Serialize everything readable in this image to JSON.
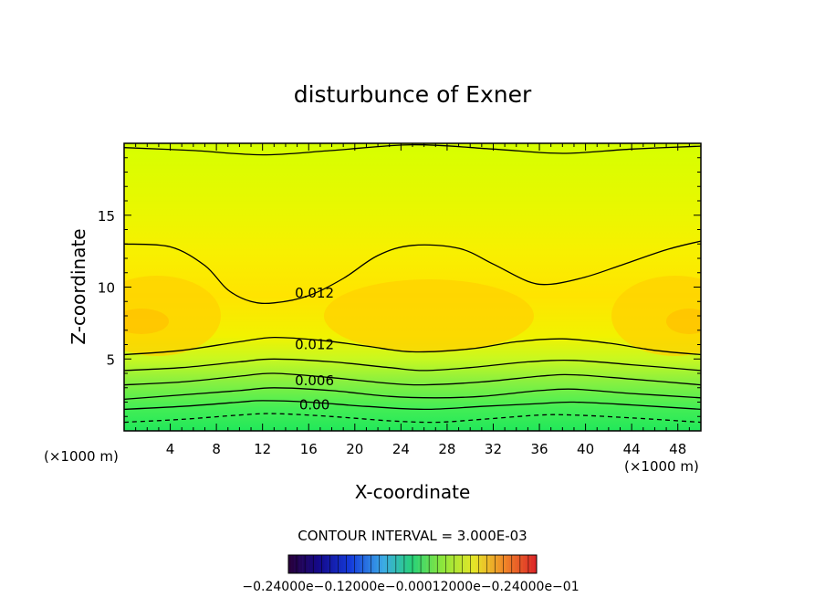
{
  "chart_data": {
    "type": "contour",
    "title": "disturbunce of Exner",
    "xlabel": "X-coordinate",
    "ylabel": "Z-coordinate",
    "x_unit_left": "(×1000 m)",
    "x_unit_right": "(×1000 m)",
    "xlim": [
      0,
      50
    ],
    "ylim": [
      0,
      20
    ],
    "x_ticks": [
      4,
      8,
      12,
      16,
      20,
      24,
      28,
      32,
      36,
      40,
      44,
      48
    ],
    "y_ticks": [
      5,
      10,
      15
    ],
    "contour_labels": [
      {
        "text": "0.012",
        "x": 16.5,
        "z": 9.6
      },
      {
        "text": "0.012",
        "x": 16.5,
        "z": 6.0
      },
      {
        "text": "0.006",
        "x": 16.5,
        "z": 3.5
      },
      {
        "text": "0.00",
        "x": 16.5,
        "z": 1.8
      }
    ],
    "contour_lines": [
      {
        "level": 0.015,
        "dashed": false,
        "points": [
          [
            0,
            19.7
          ],
          [
            6,
            19.5
          ],
          [
            12,
            19.2
          ],
          [
            18,
            19.5
          ],
          [
            25,
            19.9
          ],
          [
            32,
            19.6
          ],
          [
            38,
            19.3
          ],
          [
            44,
            19.6
          ],
          [
            50,
            19.8
          ]
        ]
      },
      {
        "level": 0.012,
        "dashed": false,
        "points": [
          [
            0,
            13.0
          ],
          [
            4,
            12.8
          ],
          [
            7,
            11.5
          ],
          [
            9,
            9.8
          ],
          [
            11,
            9.0
          ],
          [
            13,
            8.9
          ],
          [
            16,
            9.4
          ],
          [
            19,
            10.6
          ],
          [
            22,
            12.2
          ],
          [
            25,
            12.9
          ],
          [
            29,
            12.7
          ],
          [
            32,
            11.6
          ],
          [
            35,
            10.4
          ],
          [
            37,
            10.2
          ],
          [
            40,
            10.7
          ],
          [
            43,
            11.5
          ],
          [
            47,
            12.6
          ],
          [
            50,
            13.2
          ]
        ]
      },
      {
        "level": 0.012,
        "dashed": false,
        "points": [
          [
            0,
            5.3
          ],
          [
            5,
            5.6
          ],
          [
            10,
            6.2
          ],
          [
            13,
            6.5
          ],
          [
            17,
            6.3
          ],
          [
            21,
            5.9
          ],
          [
            25,
            5.5
          ],
          [
            30,
            5.7
          ],
          [
            34,
            6.2
          ],
          [
            38,
            6.4
          ],
          [
            42,
            6.1
          ],
          [
            46,
            5.6
          ],
          [
            50,
            5.3
          ]
        ]
      },
      {
        "level": 0.009,
        "dashed": false,
        "points": [
          [
            0,
            4.2
          ],
          [
            5,
            4.4
          ],
          [
            10,
            4.8
          ],
          [
            13,
            5.0
          ],
          [
            18,
            4.8
          ],
          [
            23,
            4.4
          ],
          [
            26,
            4.2
          ],
          [
            30,
            4.4
          ],
          [
            35,
            4.8
          ],
          [
            39,
            4.9
          ],
          [
            44,
            4.6
          ],
          [
            50,
            4.2
          ]
        ]
      },
      {
        "level": 0.006,
        "dashed": false,
        "points": [
          [
            0,
            3.2
          ],
          [
            5,
            3.4
          ],
          [
            10,
            3.8
          ],
          [
            13,
            4.0
          ],
          [
            18,
            3.7
          ],
          [
            23,
            3.3
          ],
          [
            26,
            3.2
          ],
          [
            31,
            3.4
          ],
          [
            36,
            3.8
          ],
          [
            39,
            3.9
          ],
          [
            44,
            3.6
          ],
          [
            50,
            3.2
          ]
        ]
      },
      {
        "level": 0.003,
        "dashed": false,
        "points": [
          [
            0,
            2.2
          ],
          [
            5,
            2.5
          ],
          [
            10,
            2.8
          ],
          [
            13,
            3.0
          ],
          [
            18,
            2.8
          ],
          [
            23,
            2.4
          ],
          [
            27,
            2.3
          ],
          [
            31,
            2.4
          ],
          [
            36,
            2.8
          ],
          [
            39,
            2.9
          ],
          [
            44,
            2.6
          ],
          [
            50,
            2.3
          ]
        ]
      },
      {
        "level": 0.0,
        "dashed": false,
        "points": [
          [
            0,
            1.5
          ],
          [
            5,
            1.7
          ],
          [
            10,
            2.0
          ],
          [
            12,
            2.1
          ],
          [
            16,
            2.0
          ],
          [
            21,
            1.7
          ],
          [
            26,
            1.5
          ],
          [
            31,
            1.7
          ],
          [
            36,
            1.9
          ],
          [
            39,
            2.0
          ],
          [
            44,
            1.8
          ],
          [
            50,
            1.5
          ]
        ]
      },
      {
        "level": -0.003,
        "dashed": true,
        "points": [
          [
            0,
            0.6
          ],
          [
            5,
            0.8
          ],
          [
            10,
            1.1
          ],
          [
            13,
            1.2
          ],
          [
            18,
            1.0
          ],
          [
            23,
            0.7
          ],
          [
            27,
            0.6
          ],
          [
            31,
            0.8
          ],
          [
            36,
            1.1
          ],
          [
            39,
            1.1
          ],
          [
            44,
            0.9
          ],
          [
            50,
            0.6
          ]
        ]
      }
    ],
    "contour_interval_text": "CONTOUR INTERVAL = 3.000E-03",
    "colorbar_labels": [
      "−0.24000e−01",
      "−0.12000e−01",
      "0.000",
      "0.12000e−01",
      "0.24000e−01"
    ],
    "colorbar_labels_raw": "−0.24000e−0.12000e−0.00012000e−0.24000e−01"
  }
}
